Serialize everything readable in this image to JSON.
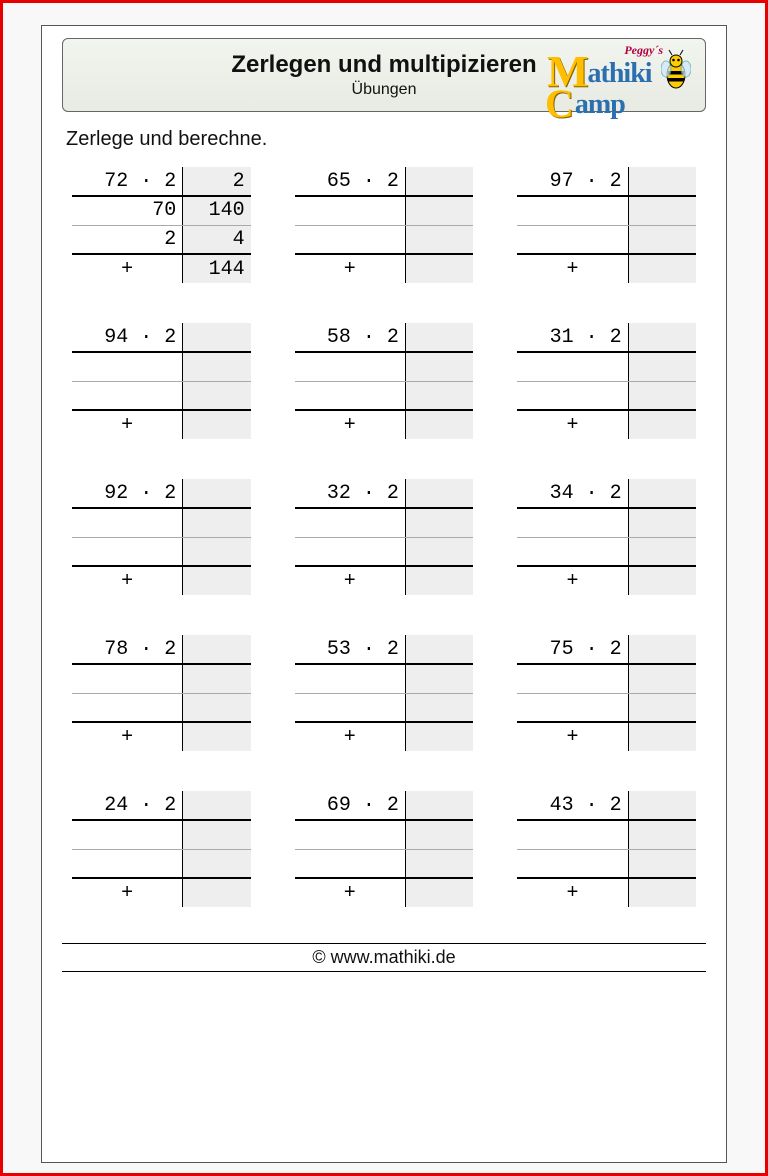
{
  "header": {
    "title": "Zerlegen und multipizieren",
    "subtitle": "Übungen",
    "logo_peggy": "Peggy´s",
    "logo_line1": "athiki",
    "logo_line2": "amp"
  },
  "instruction": "Zerlege und berechne.",
  "footer": "© www.mathiki.de",
  "colors": {
    "frame": "#e60000",
    "shade": "#eeeeee"
  },
  "problems": [
    {
      "expr": "72 · 2",
      "topright": "2",
      "r2l": "70",
      "r2r": "140",
      "r3l": "2",
      "r3r": "4",
      "sum": "144"
    },
    {
      "expr": "65 · 2",
      "topright": "",
      "r2l": "",
      "r2r": "",
      "r3l": "",
      "r3r": "",
      "sum": ""
    },
    {
      "expr": "97 · 2",
      "topright": "",
      "r2l": "",
      "r2r": "",
      "r3l": "",
      "r3r": "",
      "sum": ""
    },
    {
      "expr": "94 · 2",
      "topright": "",
      "r2l": "",
      "r2r": "",
      "r3l": "",
      "r3r": "",
      "sum": ""
    },
    {
      "expr": "58 · 2",
      "topright": "",
      "r2l": "",
      "r2r": "",
      "r3l": "",
      "r3r": "",
      "sum": ""
    },
    {
      "expr": "31 · 2",
      "topright": "",
      "r2l": "",
      "r2r": "",
      "r3l": "",
      "r3r": "",
      "sum": ""
    },
    {
      "expr": "92 · 2",
      "topright": "",
      "r2l": "",
      "r2r": "",
      "r3l": "",
      "r3r": "",
      "sum": ""
    },
    {
      "expr": "32 · 2",
      "topright": "",
      "r2l": "",
      "r2r": "",
      "r3l": "",
      "r3r": "",
      "sum": ""
    },
    {
      "expr": "34 · 2",
      "topright": "",
      "r2l": "",
      "r2r": "",
      "r3l": "",
      "r3r": "",
      "sum": ""
    },
    {
      "expr": "78 · 2",
      "topright": "",
      "r2l": "",
      "r2r": "",
      "r3l": "",
      "r3r": "",
      "sum": ""
    },
    {
      "expr": "53 · 2",
      "topright": "",
      "r2l": "",
      "r2r": "",
      "r3l": "",
      "r3r": "",
      "sum": ""
    },
    {
      "expr": "75 · 2",
      "topright": "",
      "r2l": "",
      "r2r": "",
      "r3l": "",
      "r3r": "",
      "sum": ""
    },
    {
      "expr": "24 · 2",
      "topright": "",
      "r2l": "",
      "r2r": "",
      "r3l": "",
      "r3r": "",
      "sum": ""
    },
    {
      "expr": "69 · 2",
      "topright": "",
      "r2l": "",
      "r2r": "",
      "r3l": "",
      "r3r": "",
      "sum": ""
    },
    {
      "expr": "43 · 2",
      "topright": "",
      "r2l": "",
      "r2r": "",
      "r3l": "",
      "r3r": "",
      "sum": ""
    }
  ]
}
